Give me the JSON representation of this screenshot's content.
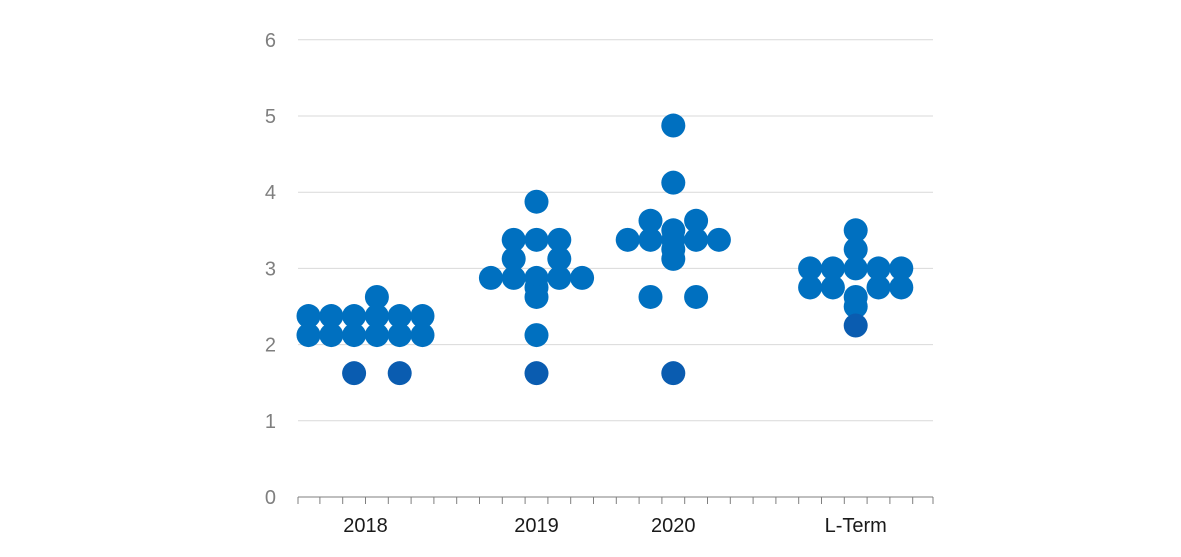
{
  "chart_data": {
    "type": "scatter",
    "title": "",
    "xlabel": "",
    "ylabel": "",
    "ylim": [
      0,
      6
    ],
    "yticks": [
      0,
      1,
      2,
      3,
      4,
      5,
      6
    ],
    "ytick_labels": [
      "0",
      "1",
      "2",
      "3",
      "4",
      "5",
      "6"
    ],
    "categories": [
      "2018",
      "2019",
      "2020",
      "L-Term"
    ],
    "grid": true,
    "colors": {
      "dot": "#0070c0",
      "dot_dark": "#0a5cb0",
      "grid": "#d9d9d9",
      "axis": "#7f7f7f"
    },
    "points": [
      {
        "x": 0,
        "y": 2.375
      },
      {
        "x": 0,
        "y": 2.125
      },
      {
        "x": 1,
        "y": 2.375
      },
      {
        "x": 1,
        "y": 2.125
      },
      {
        "x": 2,
        "y": 2.375
      },
      {
        "x": 2,
        "y": 2.125
      },
      {
        "x": 2,
        "y": 1.625,
        "dark": true
      },
      {
        "x": 3,
        "y": 2.625
      },
      {
        "x": 3,
        "y": 2.375
      },
      {
        "x": 3,
        "y": 2.125
      },
      {
        "x": 4,
        "y": 2.375
      },
      {
        "x": 4,
        "y": 2.125
      },
      {
        "x": 4,
        "y": 1.625,
        "dark": true
      },
      {
        "x": 5,
        "y": 2.375
      },
      {
        "x": 5,
        "y": 2.125
      },
      {
        "x": 8,
        "y": 2.875
      },
      {
        "x": 9,
        "y": 3.375
      },
      {
        "x": 9,
        "y": 3.125
      },
      {
        "x": 9,
        "y": 2.875
      },
      {
        "x": 10,
        "y": 3.875
      },
      {
        "x": 10,
        "y": 3.375
      },
      {
        "x": 10,
        "y": 2.875
      },
      {
        "x": 10,
        "y": 2.75
      },
      {
        "x": 10,
        "y": 2.625
      },
      {
        "x": 10,
        "y": 2.125
      },
      {
        "x": 10,
        "y": 1.625,
        "dark": true
      },
      {
        "x": 11,
        "y": 3.375
      },
      {
        "x": 11,
        "y": 3.125
      },
      {
        "x": 11,
        "y": 2.875
      },
      {
        "x": 12,
        "y": 2.875
      },
      {
        "x": 14,
        "y": 3.375
      },
      {
        "x": 15,
        "y": 3.625
      },
      {
        "x": 15,
        "y": 3.375
      },
      {
        "x": 15,
        "y": 2.625
      },
      {
        "x": 16,
        "y": 4.875
      },
      {
        "x": 16,
        "y": 4.125
      },
      {
        "x": 16,
        "y": 3.5
      },
      {
        "x": 16,
        "y": 3.375
      },
      {
        "x": 16,
        "y": 3.25
      },
      {
        "x": 16,
        "y": 3.125
      },
      {
        "x": 16,
        "y": 1.625,
        "dark": true
      },
      {
        "x": 17,
        "y": 3.625
      },
      {
        "x": 17,
        "y": 3.375
      },
      {
        "x": 17,
        "y": 2.625
      },
      {
        "x": 18,
        "y": 3.375
      },
      {
        "x": 22,
        "y": 3.0
      },
      {
        "x": 22,
        "y": 2.75
      },
      {
        "x": 23,
        "y": 3.0
      },
      {
        "x": 23,
        "y": 2.75
      },
      {
        "x": 24,
        "y": 3.5
      },
      {
        "x": 24,
        "y": 3.25
      },
      {
        "x": 24,
        "y": 3.0
      },
      {
        "x": 24,
        "y": 2.625
      },
      {
        "x": 24,
        "y": 2.5
      },
      {
        "x": 24,
        "y": 2.25,
        "dark": true
      },
      {
        "x": 25,
        "y": 3.0
      },
      {
        "x": 25,
        "y": 2.75
      },
      {
        "x": 26,
        "y": 3.0
      },
      {
        "x": 26,
        "y": 2.75
      }
    ]
  }
}
